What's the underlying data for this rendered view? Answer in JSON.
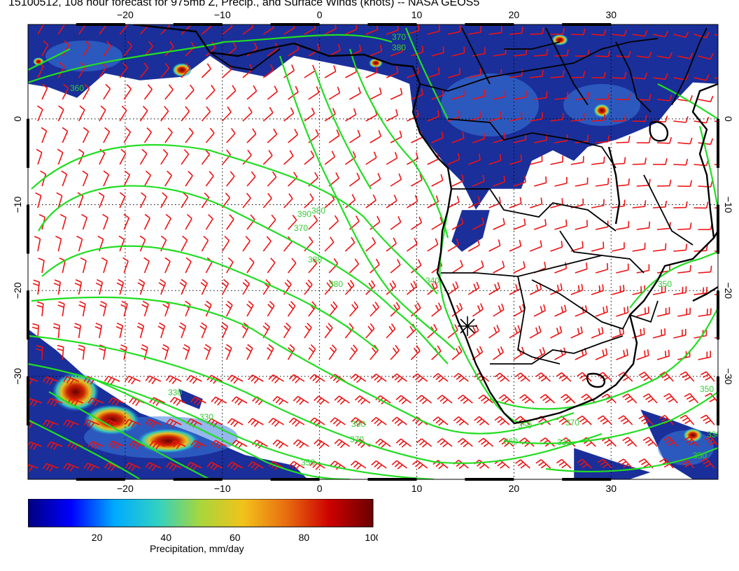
{
  "title": "15100512, 108 hour forecast for 975mb Z, Precip., and Surface Winds (knots) -- NASA GEOS5",
  "map": {
    "lon_range": [
      -30,
      41
    ],
    "lat_range": [
      -42,
      11
    ],
    "lon_ticks": [
      -20,
      -10,
      0,
      10,
      20,
      30
    ],
    "lat_ticks": [
      0,
      -10,
      -20,
      -30
    ],
    "lon_tick_labels": [
      "−20",
      "−10",
      "0",
      "10",
      "20",
      "30"
    ],
    "lat_tick_labels": [
      "0",
      "−10",
      "−20",
      "−30"
    ],
    "gridlines": "dotted",
    "colors": {
      "contour": "#22dd22",
      "wind_barb": "#ee1111",
      "coastline": "#000000",
      "precip_low": "#10208c",
      "precip_mid": "#3d7bdc"
    },
    "contour_labels": [
      "360",
      "370",
      "380",
      "390",
      "380",
      "370",
      "380",
      "380",
      "390",
      "370",
      "360",
      "350",
      "330",
      "370",
      "350",
      "340",
      "350",
      "330",
      "330",
      "350",
      "330",
      "350"
    ],
    "marker_icon": "asterisk-marker"
  },
  "colorbar": {
    "caption": "Precipitation, mm/day",
    "min": 0,
    "max": 100,
    "ticks": [
      "20",
      "40",
      "60",
      "80",
      "100"
    ],
    "colors": [
      "#00007f",
      "#0000ff",
      "#00aaff",
      "#2fd1c4",
      "#a8d63c",
      "#f2c21a",
      "#e86c10",
      "#cc0000",
      "#6b0000"
    ]
  }
}
